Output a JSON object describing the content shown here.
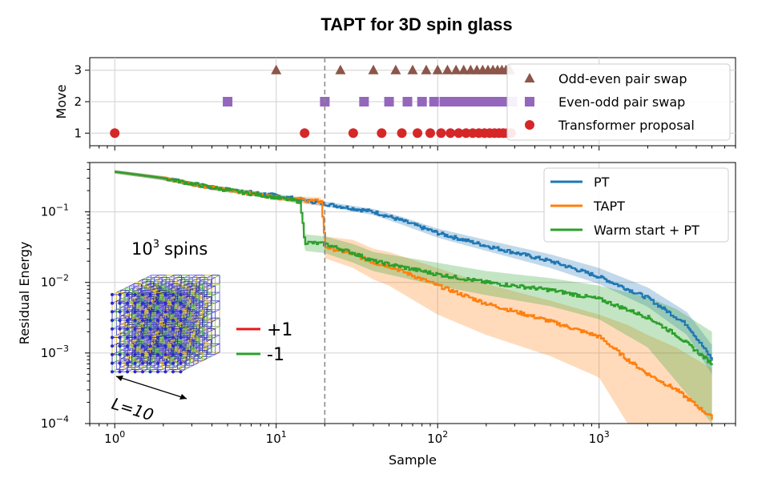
{
  "title": "TAPT for 3D spin glass",
  "chart_data": [
    {
      "type": "scatter",
      "panel": "top",
      "ylabel": "Move",
      "xscale": "log",
      "xlim": [
        0.7,
        7000
      ],
      "ylim": [
        0.6,
        3.4
      ],
      "yticks": [
        "1",
        "2",
        "3"
      ],
      "legend_position": "top-right",
      "series": [
        {
          "name": "Odd-even pair swap",
          "move": 3,
          "marker": "triangle",
          "color": "#8c564b",
          "x": [
            10,
            25,
            40,
            55,
            70,
            85,
            100,
            115,
            130,
            145,
            160,
            175,
            190,
            205,
            220,
            235,
            250,
            265,
            280
          ]
        },
        {
          "name": "Even-odd pair swap",
          "move": 2,
          "marker": "square",
          "color": "#9467bd",
          "x": [
            5,
            20,
            35,
            50,
            65,
            80,
            95,
            110,
            125,
            140,
            155,
            170,
            185,
            200,
            215,
            230,
            245,
            260,
            275,
            290
          ]
        },
        {
          "name": "Transformer proposal",
          "move": 1,
          "marker": "circle",
          "color": "#d62728",
          "x": [
            1,
            15,
            30,
            45,
            60,
            75,
            90,
            105,
            120,
            135,
            150,
            165,
            180,
            195,
            210,
            225,
            240,
            255,
            270,
            285
          ]
        }
      ]
    },
    {
      "type": "line",
      "panel": "bottom",
      "xlabel": "Sample",
      "ylabel": "Residual Energy",
      "xscale": "log",
      "yscale": "log",
      "xlim": [
        0.7,
        7000
      ],
      "ylim": [
        0.0001,
        0.5
      ],
      "xticks": [
        {
          "base": "10",
          "exp": "0"
        },
        {
          "base": "10",
          "exp": "1"
        },
        {
          "base": "10",
          "exp": "2"
        },
        {
          "base": "10",
          "exp": "3"
        }
      ],
      "yticks": [
        {
          "base": "10",
          "exp": "−1"
        },
        {
          "base": "10",
          "exp": "−2"
        },
        {
          "base": "10",
          "exp": "−3"
        },
        {
          "base": "10",
          "exp": "−4"
        }
      ],
      "vline_x": 20,
      "legend_position": "top-right",
      "series": [
        {
          "name": "PT",
          "color": "#1f77b4",
          "x": [
            1,
            2,
            4,
            10,
            20,
            40,
            60,
            100,
            200,
            500,
            1000,
            2000,
            3500,
            5000
          ],
          "y": [
            0.37,
            0.3,
            0.22,
            0.17,
            0.13,
            0.1,
            0.075,
            0.05,
            0.033,
            0.02,
            0.012,
            0.006,
            0.0025,
            0.0008
          ],
          "y_low": [
            0.35,
            0.28,
            0.205,
            0.16,
            0.12,
            0.09,
            0.066,
            0.043,
            0.028,
            0.016,
            0.0095,
            0.0045,
            0.0018,
            0.0005
          ],
          "y_high": [
            0.39,
            0.32,
            0.235,
            0.18,
            0.14,
            0.11,
            0.085,
            0.058,
            0.04,
            0.025,
            0.016,
            0.0085,
            0.0038,
            0.0013
          ]
        },
        {
          "name": "TAPT",
          "color": "#ff7f0e",
          "x": [
            1,
            2,
            4,
            10,
            19,
            20,
            30,
            40,
            50,
            100,
            200,
            500,
            1000,
            1500,
            2000,
            3000,
            5000
          ],
          "y": [
            0.37,
            0.3,
            0.22,
            0.16,
            0.14,
            0.032,
            0.025,
            0.019,
            0.017,
            0.009,
            0.005,
            0.0028,
            0.0017,
            0.0008,
            0.0005,
            0.0003,
            0.00012
          ],
          "y_low": [
            0.35,
            0.28,
            0.205,
            0.15,
            0.12,
            0.022,
            0.016,
            0.011,
            0.009,
            0.0035,
            0.0018,
            0.0009,
            0.00045,
            0.0001,
            0.0001,
            0.0001,
            0.0001
          ],
          "y_high": [
            0.39,
            0.32,
            0.235,
            0.17,
            0.16,
            0.045,
            0.04,
            0.03,
            0.027,
            0.016,
            0.0095,
            0.0055,
            0.0035,
            0.0025,
            0.0018,
            0.0012,
            0.0006
          ]
        },
        {
          "name": "Warm start + PT",
          "color": "#2ca02c",
          "x": [
            1,
            2,
            4,
            10,
            14,
            15,
            20,
            30,
            40,
            100,
            200,
            500,
            1000,
            2000,
            3000,
            5000
          ],
          "y": [
            0.37,
            0.3,
            0.22,
            0.16,
            0.14,
            0.037,
            0.035,
            0.026,
            0.02,
            0.013,
            0.01,
            0.0078,
            0.0058,
            0.0032,
            0.0018,
            0.0007
          ],
          "y_low": [
            0.35,
            0.28,
            0.205,
            0.15,
            0.13,
            0.028,
            0.026,
            0.019,
            0.0145,
            0.009,
            0.0066,
            0.0046,
            0.003,
            0.0012,
            0.0004,
            0.0001
          ],
          "y_high": [
            0.39,
            0.32,
            0.235,
            0.17,
            0.15,
            0.048,
            0.045,
            0.035,
            0.027,
            0.019,
            0.0145,
            0.0115,
            0.009,
            0.0062,
            0.0042,
            0.002
          ]
        }
      ]
    }
  ],
  "inset": {
    "spins_count": "10",
    "spins_exp": "3",
    "spins_word": "spins",
    "size_label": "L=10",
    "spin_legend": [
      {
        "label": "+1",
        "color": "#e31a1c"
      },
      {
        "label": "-1",
        "color": "#2ca02c"
      }
    ]
  }
}
